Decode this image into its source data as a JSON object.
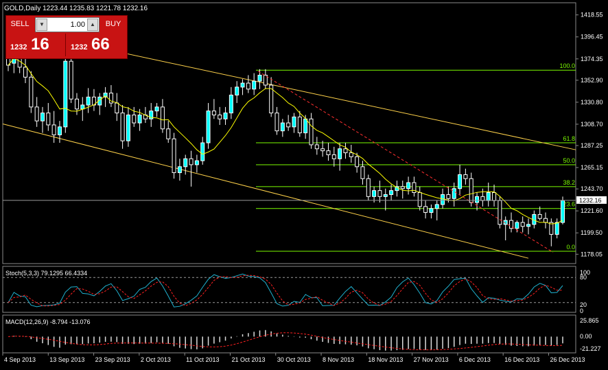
{
  "chart_title": "GOLD,Daily  1223.44 1235.83 1221.78 1232.16",
  "trade_panel": {
    "sell_label": "SELL",
    "buy_label": "BUY",
    "lot_value": "1.00",
    "bid_small": "1232",
    "bid_big": "16",
    "ask_small": "1232",
    "ask_big": "66"
  },
  "current_price_label": "1232.16",
  "price_axis_labels": [
    "1418.55",
    "1396.45",
    "1374.35",
    "1352.90",
    "1330.80",
    "1308.70",
    "1287.25",
    "1265.15",
    "1243.70",
    "1221.60",
    "1199.50",
    "1178.05"
  ],
  "fib_levels": [
    {
      "label": "100.0",
      "price": 1363
    },
    {
      "label": "61.8",
      "price": 1290
    },
    {
      "label": "50.0",
      "price": 1268
    },
    {
      "label": "38.2",
      "price": 1246
    },
    {
      "label": "23.6",
      "price": 1224
    },
    {
      "label": "0.0",
      "price": 1181
    }
  ],
  "stoch": {
    "title": "Stoch(5,3,3) 79.1295 66.4334",
    "levels": [
      "100",
      "80",
      "20",
      "0"
    ]
  },
  "macd": {
    "title": "MACD(12,26,9) -8.794 -13.076",
    "levels": [
      "25.865",
      "0.00",
      "-21.227"
    ]
  },
  "date_labels": [
    "4 Sep 2013",
    "13 Sep 2013",
    "23 Sep 2013",
    "2 Oct 2013",
    "11 Oct 2013",
    "21 Oct 2013",
    "30 Oct 2013",
    "8 Nov 2013",
    "18 Nov 2013",
    "27 Nov 2013",
    "6 Dec 2013",
    "16 Dec 2013",
    "26 Dec 2013"
  ],
  "colors": {
    "bull": "#00ffff",
    "bear": "#000000",
    "wick": "#ffffff",
    "ma": "#ffff00",
    "channel": "#ffd24a",
    "fib": "#7CFC00",
    "stoch_main": "#20b2d0",
    "stoch_signal": "#ff2020",
    "macd_signal": "#ff2020"
  },
  "chart_data": {
    "type": "candlestick",
    "symbol": "GOLD",
    "timeframe": "Daily",
    "ylim": [
      1170,
      1428
    ],
    "candles": [
      [
        1380,
        1392,
        1362,
        1368
      ],
      [
        1370,
        1388,
        1360,
        1382
      ],
      [
        1382,
        1390,
        1360,
        1366
      ],
      [
        1366,
        1378,
        1350,
        1356
      ],
      [
        1356,
        1362,
        1320,
        1326
      ],
      [
        1326,
        1336,
        1306,
        1312
      ],
      [
        1312,
        1326,
        1300,
        1320
      ],
      [
        1320,
        1330,
        1302,
        1308
      ],
      [
        1308,
        1322,
        1290,
        1298
      ],
      [
        1298,
        1312,
        1290,
        1306
      ],
      [
        1306,
        1382,
        1300,
        1372
      ],
      [
        1372,
        1380,
        1330,
        1334
      ],
      [
        1334,
        1340,
        1318,
        1324
      ],
      [
        1324,
        1336,
        1312,
        1328
      ],
      [
        1328,
        1345,
        1320,
        1336
      ],
      [
        1336,
        1344,
        1322,
        1328
      ],
      [
        1328,
        1340,
        1318,
        1336
      ],
      [
        1336,
        1346,
        1326,
        1340
      ],
      [
        1340,
        1348,
        1326,
        1330
      ],
      [
        1330,
        1340,
        1312,
        1320
      ],
      [
        1320,
        1328,
        1284,
        1292
      ],
      [
        1292,
        1326,
        1286,
        1318
      ],
      [
        1318,
        1326,
        1306,
        1310
      ],
      [
        1310,
        1324,
        1302,
        1318
      ],
      [
        1318,
        1326,
        1310,
        1314
      ],
      [
        1314,
        1330,
        1306,
        1322
      ],
      [
        1322,
        1330,
        1316,
        1326
      ],
      [
        1326,
        1334,
        1300,
        1304
      ],
      [
        1304,
        1312,
        1290,
        1294
      ],
      [
        1294,
        1300,
        1254,
        1260
      ],
      [
        1260,
        1274,
        1252,
        1266
      ],
      [
        1266,
        1278,
        1258,
        1274
      ],
      [
        1274,
        1282,
        1246,
        1268
      ],
      [
        1268,
        1278,
        1260,
        1272
      ],
      [
        1272,
        1296,
        1268,
        1290
      ],
      [
        1290,
        1330,
        1284,
        1322
      ],
      [
        1322,
        1334,
        1314,
        1318
      ],
      [
        1318,
        1326,
        1308,
        1314
      ],
      [
        1314,
        1326,
        1308,
        1320
      ],
      [
        1320,
        1346,
        1314,
        1338
      ],
      [
        1338,
        1352,
        1330,
        1346
      ],
      [
        1346,
        1354,
        1338,
        1350
      ],
      [
        1350,
        1358,
        1340,
        1344
      ],
      [
        1344,
        1360,
        1338,
        1352
      ],
      [
        1352,
        1364,
        1344,
        1358
      ],
      [
        1358,
        1364,
        1344,
        1348
      ],
      [
        1348,
        1356,
        1316,
        1320
      ],
      [
        1320,
        1326,
        1298,
        1302
      ],
      [
        1302,
        1314,
        1296,
        1310
      ],
      [
        1310,
        1318,
        1302,
        1306
      ],
      [
        1306,
        1320,
        1300,
        1316
      ],
      [
        1316,
        1322,
        1296,
        1300
      ],
      [
        1300,
        1318,
        1294,
        1314
      ],
      [
        1314,
        1320,
        1284,
        1288
      ],
      [
        1288,
        1296,
        1278,
        1284
      ],
      [
        1284,
        1292,
        1276,
        1282
      ],
      [
        1282,
        1290,
        1272,
        1278
      ],
      [
        1278,
        1286,
        1266,
        1274
      ],
      [
        1274,
        1290,
        1262,
        1284
      ],
      [
        1284,
        1290,
        1274,
        1280
      ],
      [
        1280,
        1288,
        1270,
        1276
      ],
      [
        1276,
        1280,
        1260,
        1266
      ],
      [
        1266,
        1272,
        1248,
        1254
      ],
      [
        1254,
        1258,
        1232,
        1236
      ],
      [
        1236,
        1246,
        1230,
        1242
      ],
      [
        1242,
        1252,
        1230,
        1236
      ],
      [
        1236,
        1244,
        1222,
        1238
      ],
      [
        1238,
        1248,
        1232,
        1242
      ],
      [
        1242,
        1252,
        1236,
        1246
      ],
      [
        1246,
        1252,
        1234,
        1244
      ],
      [
        1244,
        1256,
        1238,
        1250
      ],
      [
        1250,
        1256,
        1236,
        1240
      ],
      [
        1240,
        1246,
        1222,
        1226
      ],
      [
        1226,
        1232,
        1214,
        1220
      ],
      [
        1220,
        1228,
        1214,
        1224
      ],
      [
        1224,
        1232,
        1212,
        1228
      ],
      [
        1228,
        1244,
        1224,
        1238
      ],
      [
        1238,
        1246,
        1230,
        1234
      ],
      [
        1234,
        1250,
        1226,
        1244
      ],
      [
        1244,
        1268,
        1238,
        1258
      ],
      [
        1258,
        1264,
        1248,
        1254
      ],
      [
        1254,
        1260,
        1226,
        1230
      ],
      [
        1230,
        1240,
        1222,
        1236
      ],
      [
        1236,
        1244,
        1226,
        1232
      ],
      [
        1232,
        1250,
        1226,
        1240
      ],
      [
        1240,
        1248,
        1226,
        1232
      ],
      [
        1232,
        1236,
        1204,
        1208
      ],
      [
        1208,
        1216,
        1192,
        1212
      ],
      [
        1212,
        1220,
        1200,
        1204
      ],
      [
        1204,
        1212,
        1200,
        1210
      ],
      [
        1210,
        1216,
        1200,
        1206
      ],
      [
        1206,
        1214,
        1198,
        1208
      ],
      [
        1208,
        1222,
        1204,
        1218
      ],
      [
        1218,
        1226,
        1212,
        1214
      ],
      [
        1214,
        1220,
        1204,
        1210
      ],
      [
        1210,
        1214,
        1186,
        1198
      ],
      [
        1198,
        1214,
        1194,
        1210
      ],
      [
        1210,
        1236,
        1208,
        1232
      ]
    ]
  }
}
